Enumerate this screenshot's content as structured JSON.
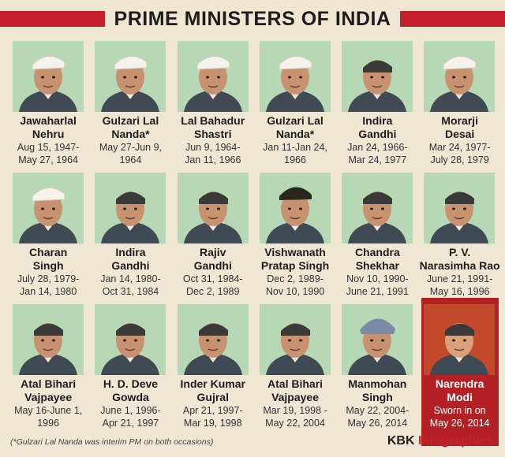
{
  "title": "PRIME MINISTERS OF INDIA",
  "people": [
    {
      "name_1": "Jawaharlal",
      "name_2": "Nehru",
      "tenure_1": "Aug 15, 1947-",
      "tenure_2": "May 27, 1964",
      "icon": "nehru-portrait",
      "cap": "gandhi-cap"
    },
    {
      "name_1": "Gulzari Lal",
      "name_2": "Nanda*",
      "tenure_1": "May 27-Jun 9,",
      "tenure_2": "1964",
      "icon": "nanda-portrait",
      "cap": "gandhi-cap"
    },
    {
      "name_1": "Lal Bahadur",
      "name_2": "Shastri",
      "tenure_1": "Jun 9, 1964-",
      "tenure_2": "Jan 11, 1966",
      "icon": "shastri-portrait",
      "cap": "gandhi-cap"
    },
    {
      "name_1": "Gulzari Lal",
      "name_2": "Nanda*",
      "tenure_1": "Jan 11-Jan 24,",
      "tenure_2": "1966",
      "icon": "nanda-portrait",
      "cap": "gandhi-cap"
    },
    {
      "name_1": "Indira",
      "name_2": "Gandhi",
      "tenure_1": "Jan 24, 1966-",
      "tenure_2": "Mar 24, 1977",
      "icon": "indira-portrait",
      "cap": "none"
    },
    {
      "name_1": "Morarji",
      "name_2": "Desai",
      "tenure_1": "Mar 24, 1977-",
      "tenure_2": "July 28, 1979",
      "icon": "desai-portrait",
      "cap": "gandhi-cap"
    },
    {
      "name_1": "Charan",
      "name_2": "Singh",
      "tenure_1": "July 28, 1979-",
      "tenure_2": "Jan 14, 1980",
      "icon": "charan-portrait",
      "cap": "gandhi-cap"
    },
    {
      "name_1": "Indira",
      "name_2": "Gandhi",
      "tenure_1": "Jan 14, 1980-",
      "tenure_2": "Oct 31, 1984",
      "icon": "indira-portrait",
      "cap": "none"
    },
    {
      "name_1": "Rajiv",
      "name_2": "Gandhi",
      "tenure_1": "Oct 31, 1984-",
      "tenure_2": "Dec 2, 1989",
      "icon": "rajiv-portrait",
      "cap": "none"
    },
    {
      "name_1": "Vishwanath",
      "name_2": "Pratap Singh",
      "tenure_1": "Dec 2, 1989-",
      "tenure_2": "Nov 10, 1990",
      "icon": "vpsingh-portrait",
      "cap": "dark-cap"
    },
    {
      "name_1": "Chandra",
      "name_2": "Shekhar",
      "tenure_1": "Nov 10, 1990-",
      "tenure_2": "June 21, 1991",
      "icon": "shekhar-portrait",
      "cap": "none"
    },
    {
      "name_1": "P. V.",
      "name_2": "Narasimha Rao",
      "tenure_1": "June 21, 1991-",
      "tenure_2": "May 16, 1996",
      "icon": "rao-portrait",
      "cap": "none"
    },
    {
      "name_1": "Atal Bihari",
      "name_2": "Vajpayee",
      "tenure_1": "May 16-June 1,",
      "tenure_2": "1996",
      "icon": "vajpayee-portrait",
      "cap": "none"
    },
    {
      "name_1": "H. D. Deve",
      "name_2": "Gowda",
      "tenure_1": "June 1, 1996-",
      "tenure_2": "Apr 21, 1997",
      "icon": "gowda-portrait",
      "cap": "none"
    },
    {
      "name_1": "Inder Kumar",
      "name_2": "Gujral",
      "tenure_1": "Apr 21, 1997-",
      "tenure_2": "Mar 19, 1998",
      "icon": "gujral-portrait",
      "cap": "none"
    },
    {
      "name_1": "Atal Bihari",
      "name_2": "Vajpayee",
      "tenure_1": "Mar 19, 1998 -",
      "tenure_2": "May 22, 2004",
      "icon": "vajpayee-portrait",
      "cap": "none"
    },
    {
      "name_1": "Manmohan",
      "name_2": "Singh",
      "tenure_1": "May 22, 2004-",
      "tenure_2": "May 26, 2014",
      "icon": "manmohan-portrait",
      "cap": "turban"
    },
    {
      "name_1": "Narendra",
      "name_2": "Modi",
      "tenure_1": "Sworn in on",
      "tenure_2": "May 26, 2014",
      "icon": "modi-portrait",
      "cap": "none",
      "current": true
    }
  ],
  "footnote": "(*Gulzari Lal Nanda was interim PM on both occasions)",
  "brand": {
    "main": "KBK ",
    "accent": "Infographics"
  },
  "colors": {
    "accent": "#c8202a",
    "photo_bg": "#b7d8b4",
    "page_bg": "#efe6d4"
  }
}
